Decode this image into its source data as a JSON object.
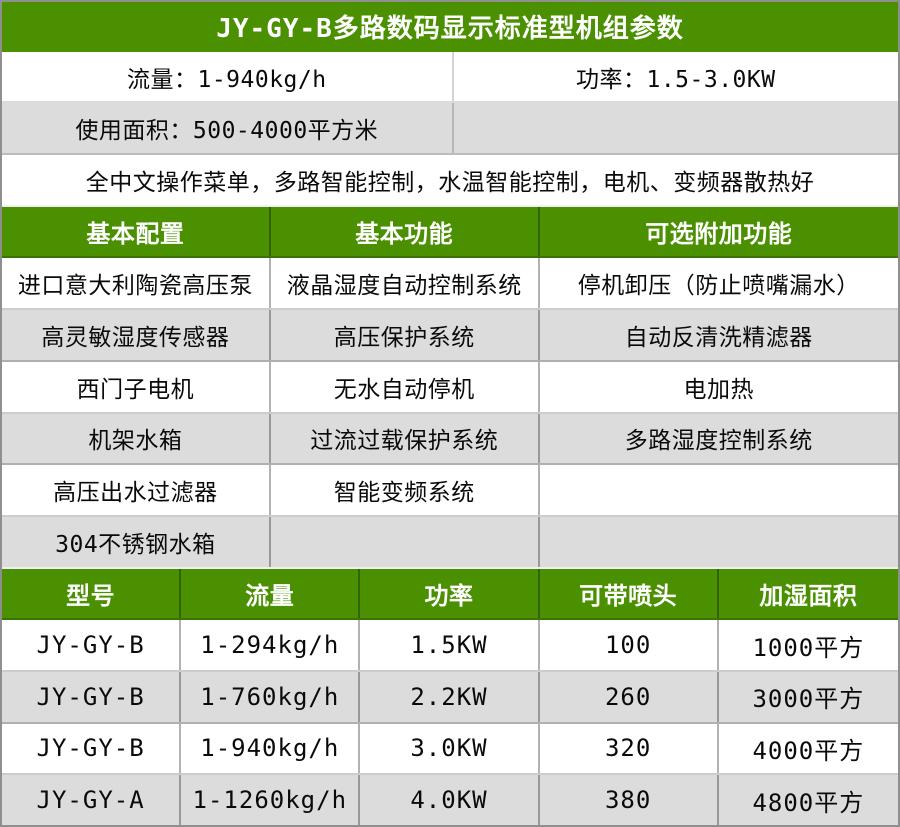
{
  "title": "JY-GY-B多路数码显示标准型机组参数",
  "colors": {
    "accent_green": "#4a9001",
    "stripe_gray": "#dcdcdc",
    "stripe_white": "#ffffff",
    "header_text": "#ffffff",
    "body_text": "#0a0a0a"
  },
  "specs": {
    "flow": "流量：1-940kg/h",
    "power": "功率：1.5-3.0KW",
    "area": "使用面积：500-4000平方米",
    "features": "全中文操作菜单，多路智能控制，水温智能控制，电机、变频器散热好"
  },
  "config_table": {
    "headers": [
      "基本配置",
      "基本功能",
      "可选附加功能"
    ],
    "rows": [
      [
        "进口意大利陶瓷高压泵",
        "液晶湿度自动控制系统",
        "停机卸压（防止喷嘴漏水）"
      ],
      [
        "高灵敏湿度传感器",
        "高压保护系统",
        "自动反清洗精滤器"
      ],
      [
        "西门子电机",
        "无水自动停机",
        "电加热"
      ],
      [
        "机架水箱",
        "过流过载保护系统",
        "多路湿度控制系统"
      ],
      [
        "高压出水过滤器",
        "智能变频系统",
        ""
      ],
      [
        "304不锈钢水箱",
        "",
        ""
      ]
    ]
  },
  "model_table": {
    "headers": [
      "型号",
      "流量",
      "功率",
      "可带喷头",
      "加湿面积"
    ],
    "rows": [
      [
        "JY-GY-B",
        "1-294kg/h",
        "1.5KW",
        "100",
        "1000平方"
      ],
      [
        "JY-GY-B",
        "1-760kg/h",
        "2.2KW",
        "260",
        "3000平方"
      ],
      [
        "JY-GY-B",
        "1-940kg/h",
        "3.0KW",
        "320",
        "4000平方"
      ],
      [
        "JY-GY-A",
        "1-1260kg/h",
        "4.0KW",
        "380",
        "4800平方"
      ]
    ]
  }
}
